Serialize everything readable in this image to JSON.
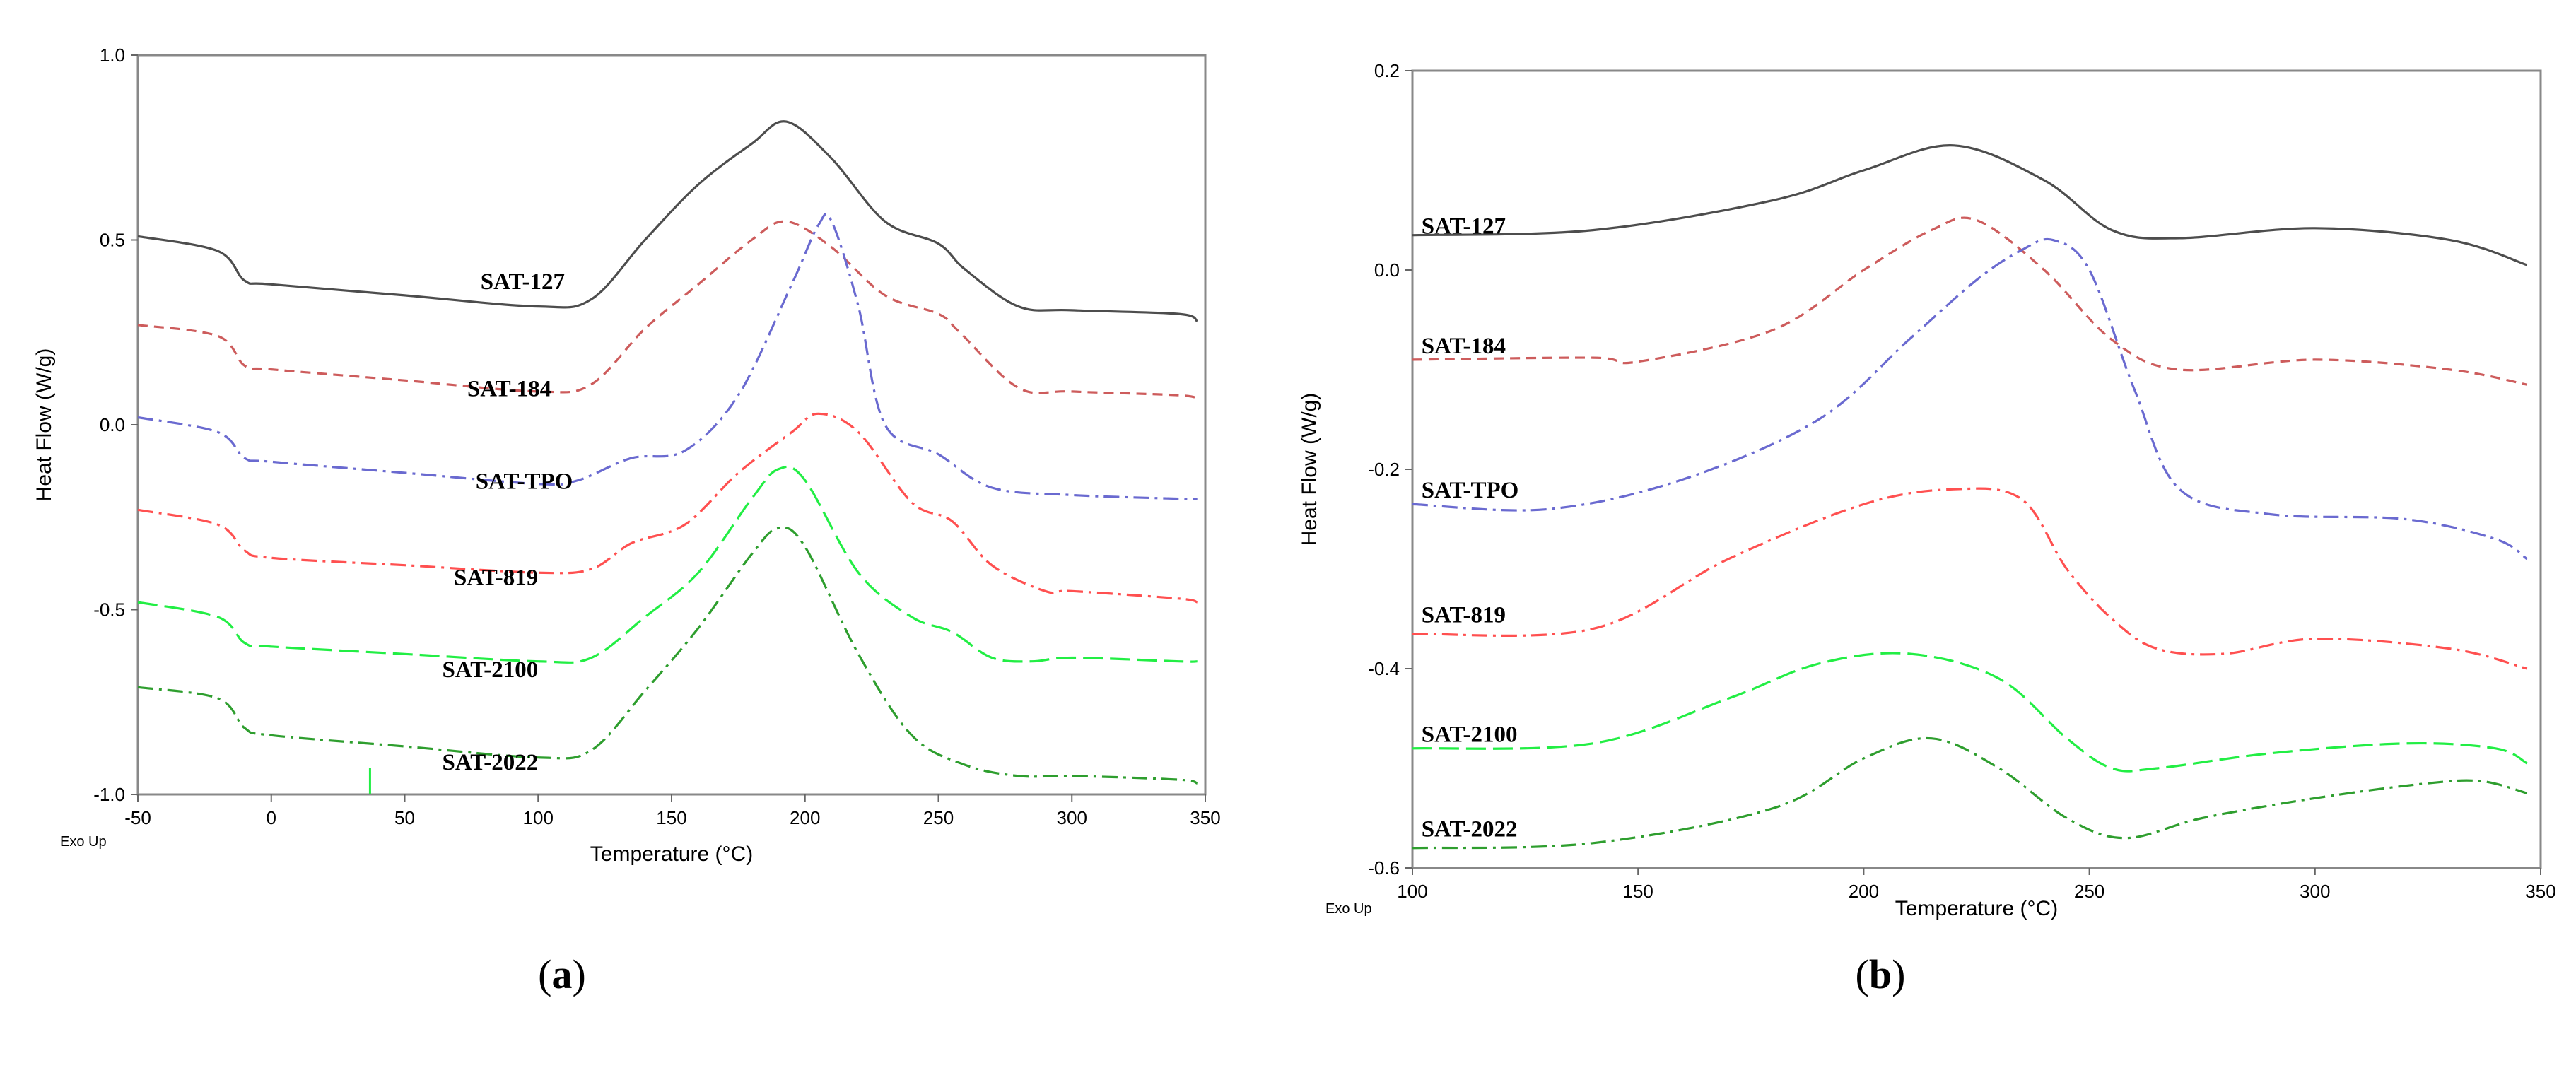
{
  "chart_data": [
    {
      "type": "line",
      "panel_label": "a",
      "xlabel": "Temperature (°C)",
      "ylabel": "Heat Flow (W/g)",
      "corner_note": "Exo Up",
      "xlim": [
        -50,
        350
      ],
      "ylim": [
        -1.0,
        1.0
      ],
      "x_ticks": [
        -50,
        0,
        50,
        100,
        150,
        200,
        250,
        300,
        350
      ],
      "y_ticks": [
        1.0,
        0.5,
        0.0,
        -0.5,
        -1.0
      ],
      "y_tick_labels": [
        "1.0",
        "0.5",
        "0.0",
        "-0.5",
        "-1.0"
      ],
      "series": [
        {
          "name": "SAT-127",
          "color": "#4d4d4d",
          "dash": "solid",
          "label_at": [
            110,
            0.39
          ],
          "x": [
            -50,
            -20,
            -10,
            0,
            50,
            100,
            120,
            140,
            160,
            180,
            193,
            210,
            230,
            250,
            260,
            280,
            300,
            340,
            347
          ],
          "y": [
            0.51,
            0.47,
            0.39,
            0.38,
            0.35,
            0.32,
            0.34,
            0.5,
            0.65,
            0.76,
            0.82,
            0.72,
            0.55,
            0.49,
            0.42,
            0.32,
            0.31,
            0.3,
            0.28
          ]
        },
        {
          "name": "SAT-184",
          "color": "#cd5c5c",
          "dash": "dash",
          "label_at": [
            105,
            0.1
          ],
          "x": [
            -50,
            -20,
            -10,
            0,
            50,
            100,
            120,
            140,
            160,
            180,
            193,
            210,
            230,
            250,
            258,
            280,
            300,
            340,
            347
          ],
          "y": [
            0.27,
            0.24,
            0.16,
            0.15,
            0.12,
            0.09,
            0.11,
            0.26,
            0.38,
            0.5,
            0.55,
            0.48,
            0.35,
            0.3,
            0.25,
            0.1,
            0.09,
            0.08,
            0.07
          ]
        },
        {
          "name": "SAT-TPO",
          "color": "#6a6ad0",
          "dash": "dashdot",
          "label_at": [
            113,
            -0.15
          ],
          "x": [
            -50,
            -20,
            -10,
            0,
            50,
            100,
            115,
            135,
            155,
            175,
            195,
            205,
            210,
            220,
            230,
            250,
            270,
            300,
            340,
            347
          ],
          "y": [
            0.02,
            -0.02,
            -0.09,
            -0.1,
            -0.13,
            -0.16,
            -0.15,
            -0.09,
            -0.07,
            0.08,
            0.38,
            0.54,
            0.55,
            0.32,
            0.0,
            -0.08,
            -0.17,
            -0.19,
            -0.2,
            -0.2
          ]
        },
        {
          "name": "SAT-819",
          "color": "#ff5050",
          "dash": "dashdot",
          "label_at": [
            100,
            -0.41
          ],
          "x": [
            -50,
            -20,
            -10,
            0,
            50,
            100,
            120,
            135,
            155,
            175,
            195,
            205,
            220,
            240,
            255,
            270,
            290,
            300,
            340,
            347
          ],
          "y": [
            -0.23,
            -0.27,
            -0.34,
            -0.36,
            -0.38,
            -0.4,
            -0.39,
            -0.32,
            -0.27,
            -0.13,
            -0.02,
            0.03,
            -0.02,
            -0.21,
            -0.26,
            -0.38,
            -0.45,
            -0.45,
            -0.47,
            -0.48
          ]
        },
        {
          "name": "SAT-2100",
          "color": "#22ee44",
          "dash": "dashlong",
          "label_at": [
            100,
            -0.66
          ],
          "x": [
            -50,
            -20,
            -10,
            0,
            50,
            100,
            120,
            140,
            160,
            180,
            190,
            200,
            220,
            240,
            255,
            270,
            285,
            300,
            340,
            347
          ],
          "y": [
            -0.48,
            -0.52,
            -0.59,
            -0.6,
            -0.62,
            -0.64,
            -0.63,
            -0.52,
            -0.4,
            -0.2,
            -0.12,
            -0.15,
            -0.4,
            -0.52,
            -0.56,
            -0.63,
            -0.64,
            -0.63,
            -0.64,
            -0.64
          ]
        },
        {
          "name": "SAT-2022",
          "color": "#2e9e2e",
          "dash": "dashdot",
          "label_at": [
            100,
            -0.91
          ],
          "x": [
            -50,
            -20,
            -10,
            0,
            50,
            100,
            120,
            140,
            160,
            180,
            190,
            200,
            220,
            240,
            260,
            280,
            300,
            340,
            347
          ],
          "y": [
            -0.71,
            -0.74,
            -0.82,
            -0.84,
            -0.87,
            -0.9,
            -0.88,
            -0.72,
            -0.55,
            -0.35,
            -0.28,
            -0.33,
            -0.62,
            -0.84,
            -0.92,
            -0.95,
            -0.95,
            -0.96,
            -0.97
          ]
        }
      ]
    },
    {
      "type": "line",
      "panel_label": "b",
      "xlabel": "Temperature (°C)",
      "ylabel": "Heat Flow (W/g)",
      "corner_note": "Exo Up",
      "xlim": [
        100,
        350
      ],
      "ylim": [
        -0.6,
        0.2
      ],
      "x_ticks": [
        100,
        150,
        200,
        250,
        300,
        350
      ],
      "y_ticks": [
        0.2,
        0.0,
        -0.2,
        -0.4,
        -0.6
      ],
      "y_tick_labels": [
        "0.2",
        "0.0",
        "-0.2",
        "-0.4",
        "-0.6"
      ],
      "series": [
        {
          "name": "SAT-127",
          "color": "#4d4d4d",
          "dash": "solid",
          "label_at": [
            102,
            0.045
          ],
          "x": [
            100,
            140,
            180,
            200,
            220,
            240,
            255,
            270,
            300,
            330,
            347
          ],
          "y": [
            0.035,
            0.04,
            0.07,
            0.1,
            0.125,
            0.09,
            0.04,
            0.032,
            0.042,
            0.03,
            0.005
          ]
        },
        {
          "name": "SAT-184",
          "color": "#cd5c5c",
          "dash": "dash",
          "label_at": [
            102,
            -0.075
          ],
          "x": [
            100,
            140,
            150,
            180,
            200,
            215,
            225,
            240,
            255,
            270,
            300,
            330,
            347
          ],
          "y": [
            -0.09,
            -0.088,
            -0.092,
            -0.06,
            0.0,
            0.04,
            0.05,
            0.0,
            -0.07,
            -0.1,
            -0.09,
            -0.1,
            -0.115
          ]
        },
        {
          "name": "SAT-TPO",
          "color": "#6a6ad0",
          "dash": "dashdot",
          "label_at": [
            102,
            -0.22
          ],
          "x": [
            100,
            130,
            160,
            190,
            210,
            225,
            235,
            242,
            250,
            260,
            270,
            290,
            320,
            340,
            347
          ],
          "y": [
            -0.235,
            -0.24,
            -0.21,
            -0.15,
            -0.07,
            -0.01,
            0.02,
            0.03,
            0.0,
            -0.12,
            -0.22,
            -0.245,
            -0.25,
            -0.27,
            -0.29
          ]
        },
        {
          "name": "SAT-819",
          "color": "#ff5050",
          "dash": "dashdot",
          "label_at": [
            102,
            -0.345
          ],
          "x": [
            100,
            140,
            170,
            200,
            220,
            235,
            245,
            255,
            265,
            280,
            300,
            330,
            347
          ],
          "y": [
            -0.365,
            -0.36,
            -0.29,
            -0.235,
            -0.22,
            -0.23,
            -0.3,
            -0.35,
            -0.38,
            -0.385,
            -0.37,
            -0.38,
            -0.4
          ]
        },
        {
          "name": "SAT-2100",
          "color": "#22ee44",
          "dash": "dashlong",
          "label_at": [
            102,
            -0.465
          ],
          "x": [
            100,
            140,
            170,
            190,
            210,
            230,
            245,
            255,
            265,
            290,
            320,
            340,
            347
          ],
          "y": [
            -0.48,
            -0.475,
            -0.43,
            -0.395,
            -0.385,
            -0.41,
            -0.47,
            -0.5,
            -0.5,
            -0.485,
            -0.475,
            -0.48,
            -0.495
          ]
        },
        {
          "name": "SAT-2022",
          "color": "#2e9e2e",
          "dash": "dashdot",
          "label_at": [
            102,
            -0.56
          ],
          "x": [
            100,
            140,
            180,
            200,
            215,
            230,
            245,
            258,
            275,
            300,
            325,
            337,
            347
          ],
          "y": [
            -0.58,
            -0.575,
            -0.54,
            -0.49,
            -0.47,
            -0.5,
            -0.55,
            -0.57,
            -0.55,
            -0.53,
            -0.515,
            -0.513,
            -0.525
          ]
        }
      ]
    }
  ]
}
